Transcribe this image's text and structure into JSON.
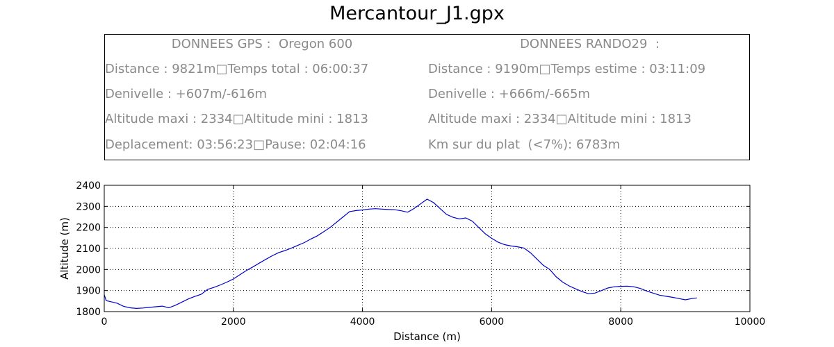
{
  "title": "Mercantour_J1.gpx",
  "info": {
    "left_header": "DONNEES GPS :  Oregon 600",
    "left_lines": [
      "Distance : 9821m□Temps total : 06:00:37",
      "Denivelle : +607m/-616m",
      "Altitude maxi : 2334□Altitude mini : 1813",
      "Deplacement: 03:56:23□Pause: 02:04:16"
    ],
    "right_header": "DONNEES RANDO29  :",
    "right_lines": [
      "Distance : 9190m□Temps estime : 03:11:09",
      "Denivelle : +666m/-665m",
      "Altitude maxi : 2334□Altitude mini : 1813",
      "Km sur du plat  (<7%): 6783m"
    ]
  },
  "chart_data": {
    "type": "line",
    "xlabel": "Distance (m)",
    "ylabel": "Altitude (m)",
    "xlim": [
      0,
      10000
    ],
    "ylim": [
      1800,
      2400
    ],
    "xticks": [
      0,
      2000,
      4000,
      6000,
      8000,
      10000
    ],
    "yticks": [
      1800,
      1900,
      2000,
      2100,
      2200,
      2300,
      2400
    ],
    "grid": true,
    "line_color": "#0000cc",
    "series": [
      {
        "x": [
          0,
          30,
          100,
          200,
          300,
          400,
          500,
          600,
          700,
          800,
          900,
          1000,
          1100,
          1200,
          1300,
          1400,
          1500,
          1600,
          1700,
          1800,
          1900,
          2000,
          2100,
          2200,
          2300,
          2400,
          2500,
          2600,
          2700,
          2800,
          2900,
          3000,
          3100,
          3200,
          3300,
          3400,
          3500,
          3600,
          3700,
          3800,
          3900,
          4000,
          4100,
          4200,
          4300,
          4400,
          4500,
          4600,
          4700,
          4800,
          4900,
          5000,
          5100,
          5200,
          5300,
          5400,
          5500,
          5600,
          5700,
          5800,
          5900,
          6000,
          6100,
          6200,
          6300,
          6400,
          6500,
          6600,
          6700,
          6800,
          6900,
          7000,
          7100,
          7200,
          7300,
          7400,
          7500,
          7600,
          7700,
          7800,
          7900,
          8000,
          8100,
          8200,
          8300,
          8400,
          8500,
          8600,
          8700,
          8800,
          8900,
          9000,
          9100,
          9180
        ],
        "y": [
          1880,
          1852,
          1847,
          1840,
          1825,
          1818,
          1815,
          1817,
          1820,
          1823,
          1826,
          1818,
          1830,
          1845,
          1860,
          1872,
          1882,
          1905,
          1915,
          1927,
          1940,
          1955,
          1975,
          1995,
          2012,
          2030,
          2048,
          2065,
          2080,
          2090,
          2102,
          2115,
          2128,
          2145,
          2160,
          2180,
          2200,
          2225,
          2250,
          2275,
          2280,
          2283,
          2287,
          2289,
          2287,
          2285,
          2284,
          2279,
          2272,
          2290,
          2312,
          2334,
          2318,
          2290,
          2262,
          2248,
          2240,
          2245,
          2230,
          2200,
          2170,
          2148,
          2130,
          2118,
          2112,
          2108,
          2102,
          2080,
          2050,
          2020,
          2000,
          1965,
          1940,
          1922,
          1908,
          1895,
          1885,
          1888,
          1900,
          1912,
          1918,
          1920,
          1921,
          1918,
          1910,
          1898,
          1888,
          1878,
          1873,
          1868,
          1862,
          1856,
          1862,
          1865
        ]
      }
    ]
  }
}
